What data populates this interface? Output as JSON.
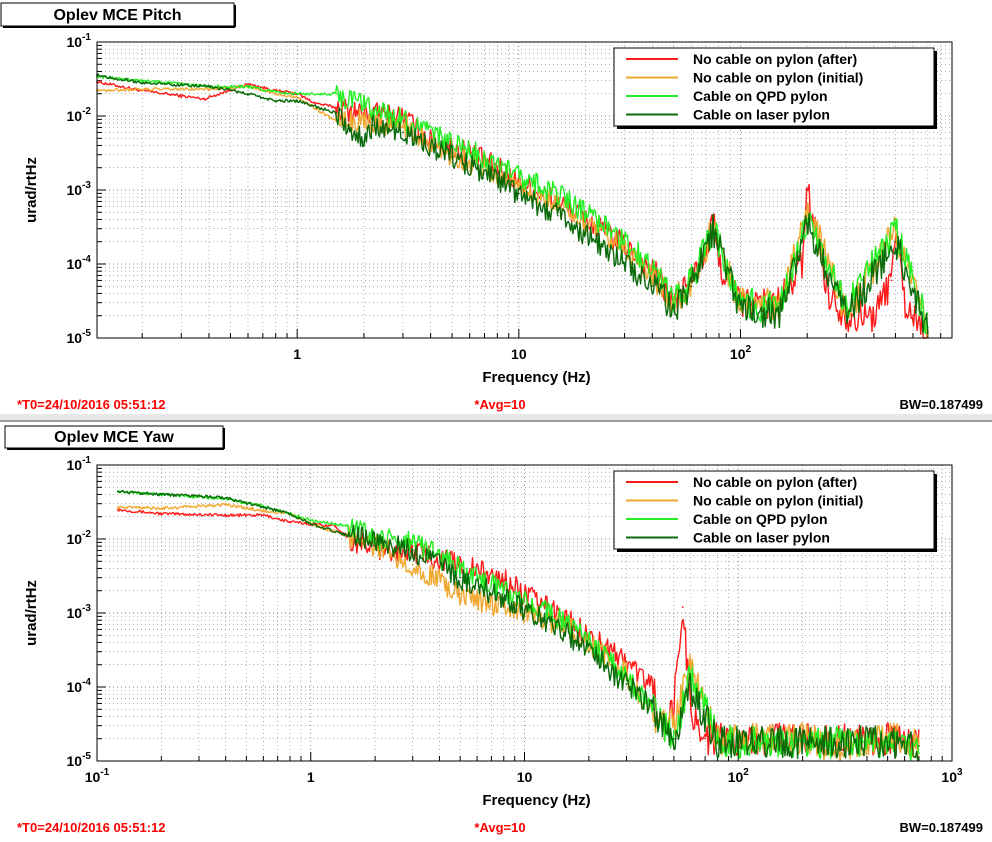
{
  "colors": {
    "red": "#ff1a1a",
    "orange": "#f0a830",
    "lightgreen": "#22ee22",
    "darkgreen": "#0a6a0a",
    "grid": "#808080",
    "footer_red": "#ff0000",
    "pad_gray": "#e8e8e8"
  },
  "panels": [
    {
      "title": "Oplev MCE Pitch",
      "footer_t0": "*T0=24/10/2016 05:51:12",
      "footer_avg": "*Avg=10",
      "footer_bw": "BW=0.187499"
    },
    {
      "title": "Oplev MCE Yaw",
      "footer_t0": "*T0=24/10/2016 05:51:12",
      "footer_avg": "*Avg=10",
      "footer_bw": "BW=0.187499"
    }
  ],
  "chart_data": [
    {
      "type": "line",
      "title": "Oplev MCE Pitch",
      "xlabel": "Frequency (Hz)",
      "ylabel": "urad/rtHz",
      "xscale": "log",
      "yscale": "log",
      "xlim": [
        0.125,
        900
      ],
      "ylim": [
        1e-05,
        0.1
      ],
      "grid": true,
      "legend_position": "top-right",
      "x_tick_labels": [
        "1",
        "10",
        "10^2"
      ],
      "y_tick_labels": [
        "10^-5",
        "10^-4",
        "10^-3",
        "10^-2",
        "10^-1"
      ],
      "series": [
        {
          "name": "No cable on pylon (after)",
          "color": "#ff1a1a",
          "x": [
            0.125,
            0.2,
            0.38,
            0.6,
            0.8,
            1.0,
            1.2,
            1.5,
            2.0,
            3.0,
            4.0,
            6.0,
            8.0,
            10,
            15,
            20,
            30,
            40,
            50,
            60,
            70,
            75,
            80,
            100,
            150,
            190,
            200,
            250,
            300,
            400,
            480,
            500,
            550,
            600,
            700
          ],
          "y": [
            0.029,
            0.022,
            0.017,
            0.027,
            0.022,
            0.02,
            0.015,
            0.013,
            0.011,
            0.01,
            0.0046,
            0.0032,
            0.002,
            0.0013,
            0.0007,
            0.0004,
            0.00018,
            8e-05,
            3e-05,
            6e-05,
            0.00015,
            0.0004,
            0.0001,
            3e-05,
            3e-05,
            0.0001,
            0.001,
            4e-05,
            2e-05,
            2e-05,
            6e-05,
            0.0004,
            3e-05,
            2e-05,
            1.2e-05
          ]
        },
        {
          "name": "No cable on pylon (initial)",
          "color": "#f0a830",
          "x": [
            0.125,
            0.2,
            0.4,
            0.6,
            0.8,
            1.0,
            1.5,
            2.0,
            3.0,
            5.0,
            8.0,
            10,
            15,
            20,
            30,
            40,
            50,
            60,
            75,
            100,
            150,
            200,
            300,
            500,
            700
          ],
          "y": [
            0.022,
            0.023,
            0.023,
            0.025,
            0.02,
            0.018,
            0.0085,
            0.0085,
            0.0075,
            0.003,
            0.0015,
            0.0012,
            0.0006,
            0.00035,
            0.00015,
            7e-05,
            3e-05,
            5e-05,
            0.0003,
            3e-05,
            3e-05,
            0.0006,
            2e-05,
            0.0003,
            1.2e-05
          ]
        },
        {
          "name": "Cable on QPD pylon",
          "color": "#22ee22",
          "x": [
            0.125,
            0.2,
            0.4,
            0.6,
            0.8,
            1.0,
            1.5,
            2.0,
            3.0,
            4.0,
            6.0,
            10,
            15,
            20,
            30,
            40,
            50,
            60,
            75,
            100,
            150,
            200,
            300,
            500,
            700
          ],
          "y": [
            0.034,
            0.03,
            0.025,
            0.025,
            0.021,
            0.02,
            0.02,
            0.014,
            0.009,
            0.0055,
            0.0035,
            0.0015,
            0.0009,
            0.0005,
            0.0002,
            9e-05,
            3.5e-05,
            6e-05,
            0.0003,
            3e-05,
            2.5e-05,
            0.0004,
            2.5e-05,
            0.0003,
            1.4e-05
          ]
        },
        {
          "name": "Cable on laser pylon",
          "color": "#0a6a0a",
          "x": [
            0.125,
            0.2,
            0.4,
            0.6,
            0.8,
            1.0,
            1.5,
            2.0,
            2.2,
            3.0,
            5.0,
            8.0,
            10,
            15,
            20,
            30,
            40,
            50,
            60,
            75,
            100,
            150,
            200,
            300,
            500,
            700
          ],
          "y": [
            0.036,
            0.028,
            0.025,
            0.02,
            0.016,
            0.016,
            0.011,
            0.0045,
            0.0075,
            0.006,
            0.0028,
            0.0014,
            0.0009,
            0.00045,
            0.00025,
            0.0001,
            5e-05,
            2.5e-05,
            5e-05,
            0.0003,
            2.5e-05,
            2e-05,
            0.00035,
            2e-05,
            0.0002,
            1.2e-05
          ]
        }
      ]
    },
    {
      "type": "line",
      "title": "Oplev MCE Yaw",
      "xlabel": "Frequency (Hz)",
      "ylabel": "urad/rtHz",
      "xscale": "log",
      "yscale": "log",
      "xlim": [
        0.1,
        1000
      ],
      "ylim": [
        1e-05,
        0.1
      ],
      "grid": true,
      "legend_position": "top-right",
      "x_tick_labels": [
        "10^-1",
        "1",
        "10",
        "10^2",
        "10^3"
      ],
      "y_tick_labels": [
        "10^-5",
        "10^-4",
        "10^-3",
        "10^-2",
        "10^-1"
      ],
      "series": [
        {
          "name": "No cable on pylon (after)",
          "color": "#ff1a1a",
          "x": [
            0.125,
            0.2,
            0.4,
            0.6,
            0.8,
            1.0,
            1.3,
            1.6,
            2.0,
            3.0,
            5.0,
            8.0,
            10,
            15,
            20,
            30,
            40,
            45,
            50,
            55,
            60,
            70,
            80,
            100,
            150,
            200,
            300,
            500,
            700
          ],
          "y": [
            0.025,
            0.022,
            0.021,
            0.021,
            0.017,
            0.016,
            0.015,
            0.009,
            0.0075,
            0.007,
            0.0045,
            0.0028,
            0.0018,
            0.0009,
            0.0005,
            0.00022,
            0.0001,
            2e-05,
            6e-05,
            0.0012,
            5e-05,
            2e-05,
            2e-05,
            2e-05,
            2e-05,
            2e-05,
            2e-05,
            2e-05,
            1.8e-05
          ]
        },
        {
          "name": "No cable on pylon (initial)",
          "color": "#f0a830",
          "x": [
            0.125,
            0.2,
            0.4,
            0.6,
            0.8,
            1.0,
            1.5,
            2.0,
            3.0,
            5.0,
            8.0,
            10,
            15,
            20,
            30,
            40,
            50,
            60,
            80,
            100,
            200,
            300,
            500,
            700
          ],
          "y": [
            0.027,
            0.026,
            0.029,
            0.024,
            0.022,
            0.016,
            0.011,
            0.008,
            0.0045,
            0.0018,
            0.0012,
            0.001,
            0.0007,
            0.0004,
            0.00015,
            4e-05,
            3e-05,
            0.0002,
            2e-05,
            2e-05,
            2e-05,
            1.5e-05,
            2e-05,
            1.8e-05
          ]
        },
        {
          "name": "Cable on QPD pylon",
          "color": "#22ee22",
          "x": [
            0.125,
            0.2,
            0.4,
            0.6,
            0.8,
            1.0,
            1.5,
            2.0,
            3.0,
            5.0,
            8.0,
            10,
            15,
            20,
            30,
            40,
            50,
            60,
            80,
            100,
            200,
            300,
            500,
            700
          ],
          "y": [
            0.044,
            0.04,
            0.035,
            0.028,
            0.022,
            0.018,
            0.015,
            0.01,
            0.009,
            0.004,
            0.002,
            0.0014,
            0.0008,
            0.0004,
            0.00014,
            5e-05,
            2e-05,
            0.00015,
            2e-05,
            1.8e-05,
            1.8e-05,
            1.8e-05,
            1.8e-05,
            1.6e-05
          ]
        },
        {
          "name": "Cable on laser pylon",
          "color": "#0a6a0a",
          "x": [
            0.125,
            0.2,
            0.4,
            0.6,
            0.8,
            1.0,
            1.5,
            2.0,
            3.0,
            5.0,
            8.0,
            10,
            15,
            20,
            30,
            40,
            50,
            60,
            80,
            100,
            200,
            300,
            500,
            700
          ],
          "y": [
            0.044,
            0.04,
            0.036,
            0.027,
            0.022,
            0.016,
            0.011,
            0.01,
            0.007,
            0.003,
            0.0016,
            0.0011,
            0.0006,
            0.0003,
            0.00011,
            5e-05,
            2e-05,
            0.0001,
            1.8e-05,
            1.8e-05,
            1.8e-05,
            1.8e-05,
            1.8e-05,
            1.6e-05
          ]
        }
      ]
    }
  ]
}
